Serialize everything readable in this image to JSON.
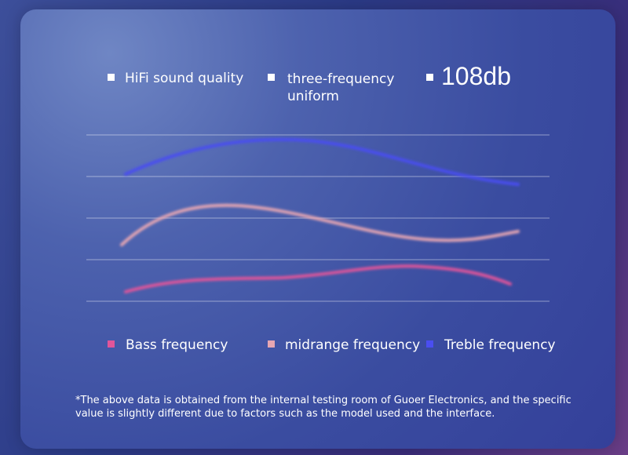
{
  "features": [
    {
      "label": "HiFi sound quality"
    },
    {
      "label": "three-frequency uniform"
    },
    {
      "label": "108db"
    }
  ],
  "legend": [
    {
      "label": "Bass frequency"
    },
    {
      "label": "midrange frequency"
    },
    {
      "label": "Treble frequency"
    }
  ],
  "footnote": "*The above data is obtained from the internal testing room of Guoer Electronics, and the specific value is slightly different due to factors such as the model used and the interface."
}
